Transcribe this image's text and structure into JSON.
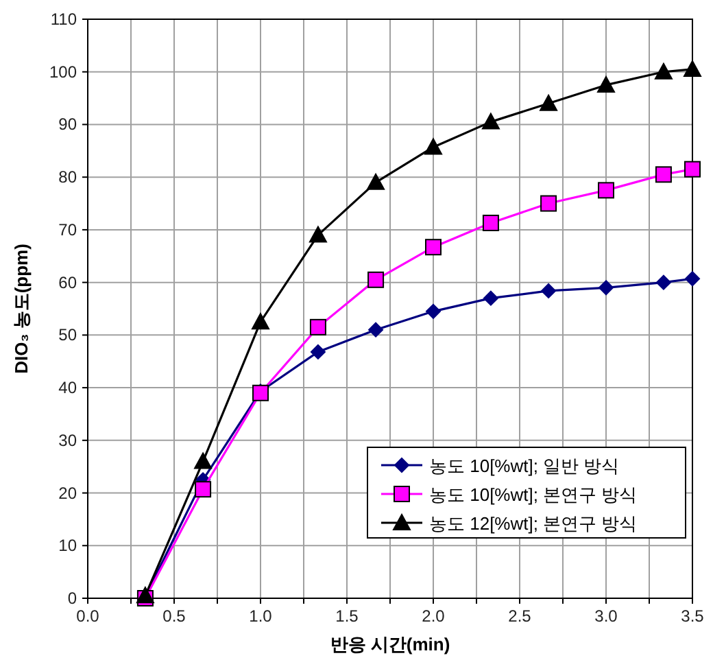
{
  "chart_data": {
    "type": "line",
    "xlabel": "반응 시간(min)",
    "ylabel": "DIO₃ 농도(ppm)",
    "xlim": [
      0,
      3.5
    ],
    "ylim": [
      0,
      110
    ],
    "xticks": [
      {
        "value": 0,
        "label": "0.0"
      },
      {
        "value": 0.25,
        "label": null
      },
      {
        "value": 0.5,
        "label": "0.5"
      },
      {
        "value": 0.75,
        "label": null
      },
      {
        "value": 1,
        "label": "1.0"
      },
      {
        "value": 1.25,
        "label": null
      },
      {
        "value": 1.5,
        "label": "1.5"
      },
      {
        "value": 1.75,
        "label": null
      },
      {
        "value": 2,
        "label": "2.0"
      },
      {
        "value": 2.25,
        "label": null
      },
      {
        "value": 2.5,
        "label": "2.5"
      },
      {
        "value": 2.75,
        "label": null
      },
      {
        "value": 3,
        "label": "3.0"
      },
      {
        "value": 3.25,
        "label": null
      },
      {
        "value": 3.5,
        "label": "3.5"
      }
    ],
    "yticks": [
      0,
      10,
      20,
      30,
      40,
      50,
      60,
      70,
      80,
      90,
      100,
      110
    ],
    "grid": true,
    "legend": "bottom right",
    "x": [
      0.333,
      0.667,
      1,
      1.333,
      1.667,
      2,
      2.333,
      2.667,
      3,
      3.333,
      3.5
    ],
    "series": [
      {
        "name": "농도 10[%wt]; 일반 방식",
        "color": "#000080",
        "marker": "diamond",
        "values": [
          0.3,
          22.5,
          39.3,
          46.8,
          51,
          54.5,
          57,
          58.4,
          59,
          60,
          60.7
        ]
      },
      {
        "name": "농도 10[%wt]; 본연구 방식",
        "color": "#ff00ff",
        "marker": "square",
        "values": [
          0,
          20.7,
          39,
          51.5,
          60.5,
          66.7,
          71.3,
          75,
          77.5,
          80.5,
          81.5
        ]
      },
      {
        "name": "농도 12[%wt]; 본연구 방식",
        "color": "#000000",
        "marker": "triangle",
        "values": [
          0.5,
          26,
          52.5,
          69,
          79,
          85.7,
          90.5,
          94,
          97.5,
          100,
          100.5
        ]
      }
    ]
  }
}
